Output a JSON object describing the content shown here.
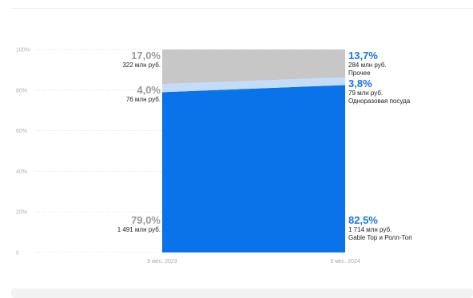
{
  "chart_data": {
    "type": "area",
    "x": [
      "9 мес. 2023",
      "9 мес. 2024"
    ],
    "series": [
      {
        "name": "Gable Top и Ролл-Топ",
        "values": [
          79.0,
          82.5
        ],
        "labels": [
          "79,0%",
          "82,5%"
        ],
        "amounts": [
          "1 491 млн руб.",
          "1 714 млн руб."
        ],
        "color": "#0a73ea"
      },
      {
        "name": "Одноразовая посуда",
        "values": [
          4.0,
          3.8
        ],
        "labels": [
          "4,0%",
          "3,8%"
        ],
        "amounts": [
          "76 млн руб.",
          "79 млн руб."
        ],
        "color": "#c4dcf8"
      },
      {
        "name": "Прочее",
        "values": [
          17.0,
          13.7
        ],
        "labels": [
          "17,0%",
          "13,7%"
        ],
        "amounts": [
          "322 млн руб.",
          "284 млн руб."
        ],
        "color": "#c7c7c7"
      }
    ],
    "y_ticks": [
      "0",
      "20%",
      "40%",
      "60%",
      "80%",
      "100%"
    ],
    "ylim": [
      0,
      100
    ],
    "stacked": true,
    "grid": true
  }
}
